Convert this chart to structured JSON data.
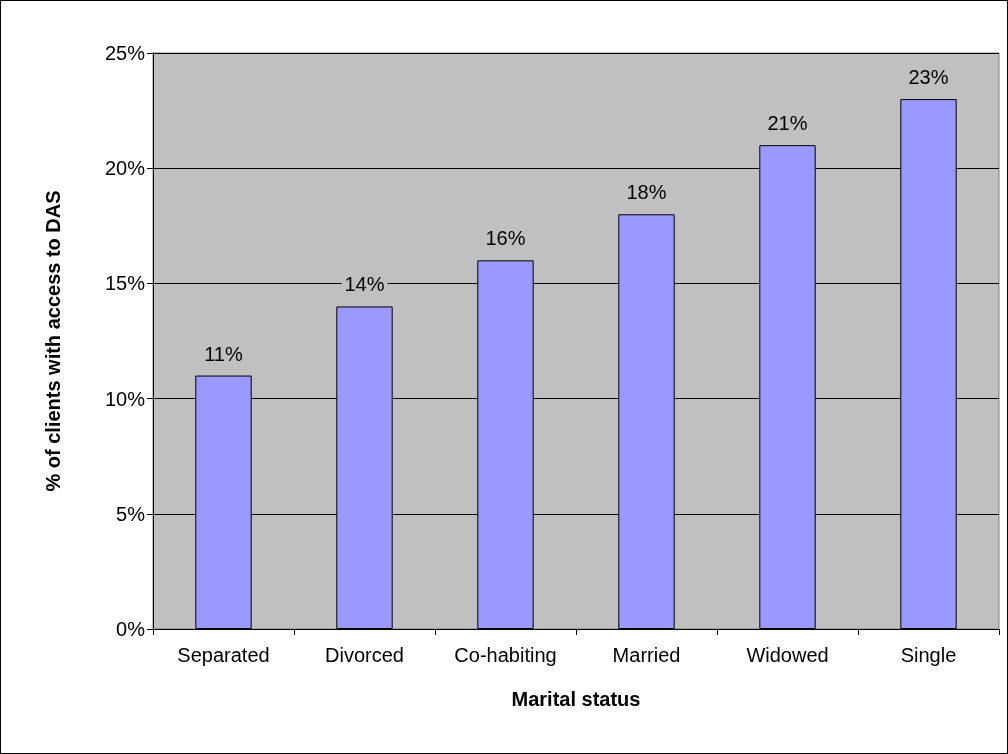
{
  "chart_data": {
    "type": "bar",
    "xlabel": "Marital status",
    "ylabel": "% of clients with access to DAS",
    "categories": [
      "Separated",
      "Divorced",
      "Co-habiting",
      "Married",
      "Widowed",
      "Single"
    ],
    "values": [
      11,
      14,
      16,
      18,
      21,
      23
    ],
    "value_labels": [
      "11%",
      "14%",
      "16%",
      "18%",
      "21%",
      "23%"
    ],
    "color": "#9999ff",
    "ylim": [
      0,
      25
    ],
    "yticks": [
      {
        "value": 0,
        "label": "0%"
      },
      {
        "value": 5,
        "label": "5%"
      },
      {
        "value": 10,
        "label": "10%"
      },
      {
        "value": 15,
        "label": "15%"
      },
      {
        "value": 20,
        "label": "20%"
      },
      {
        "value": 25,
        "label": "25%"
      }
    ],
    "grid": "y"
  }
}
